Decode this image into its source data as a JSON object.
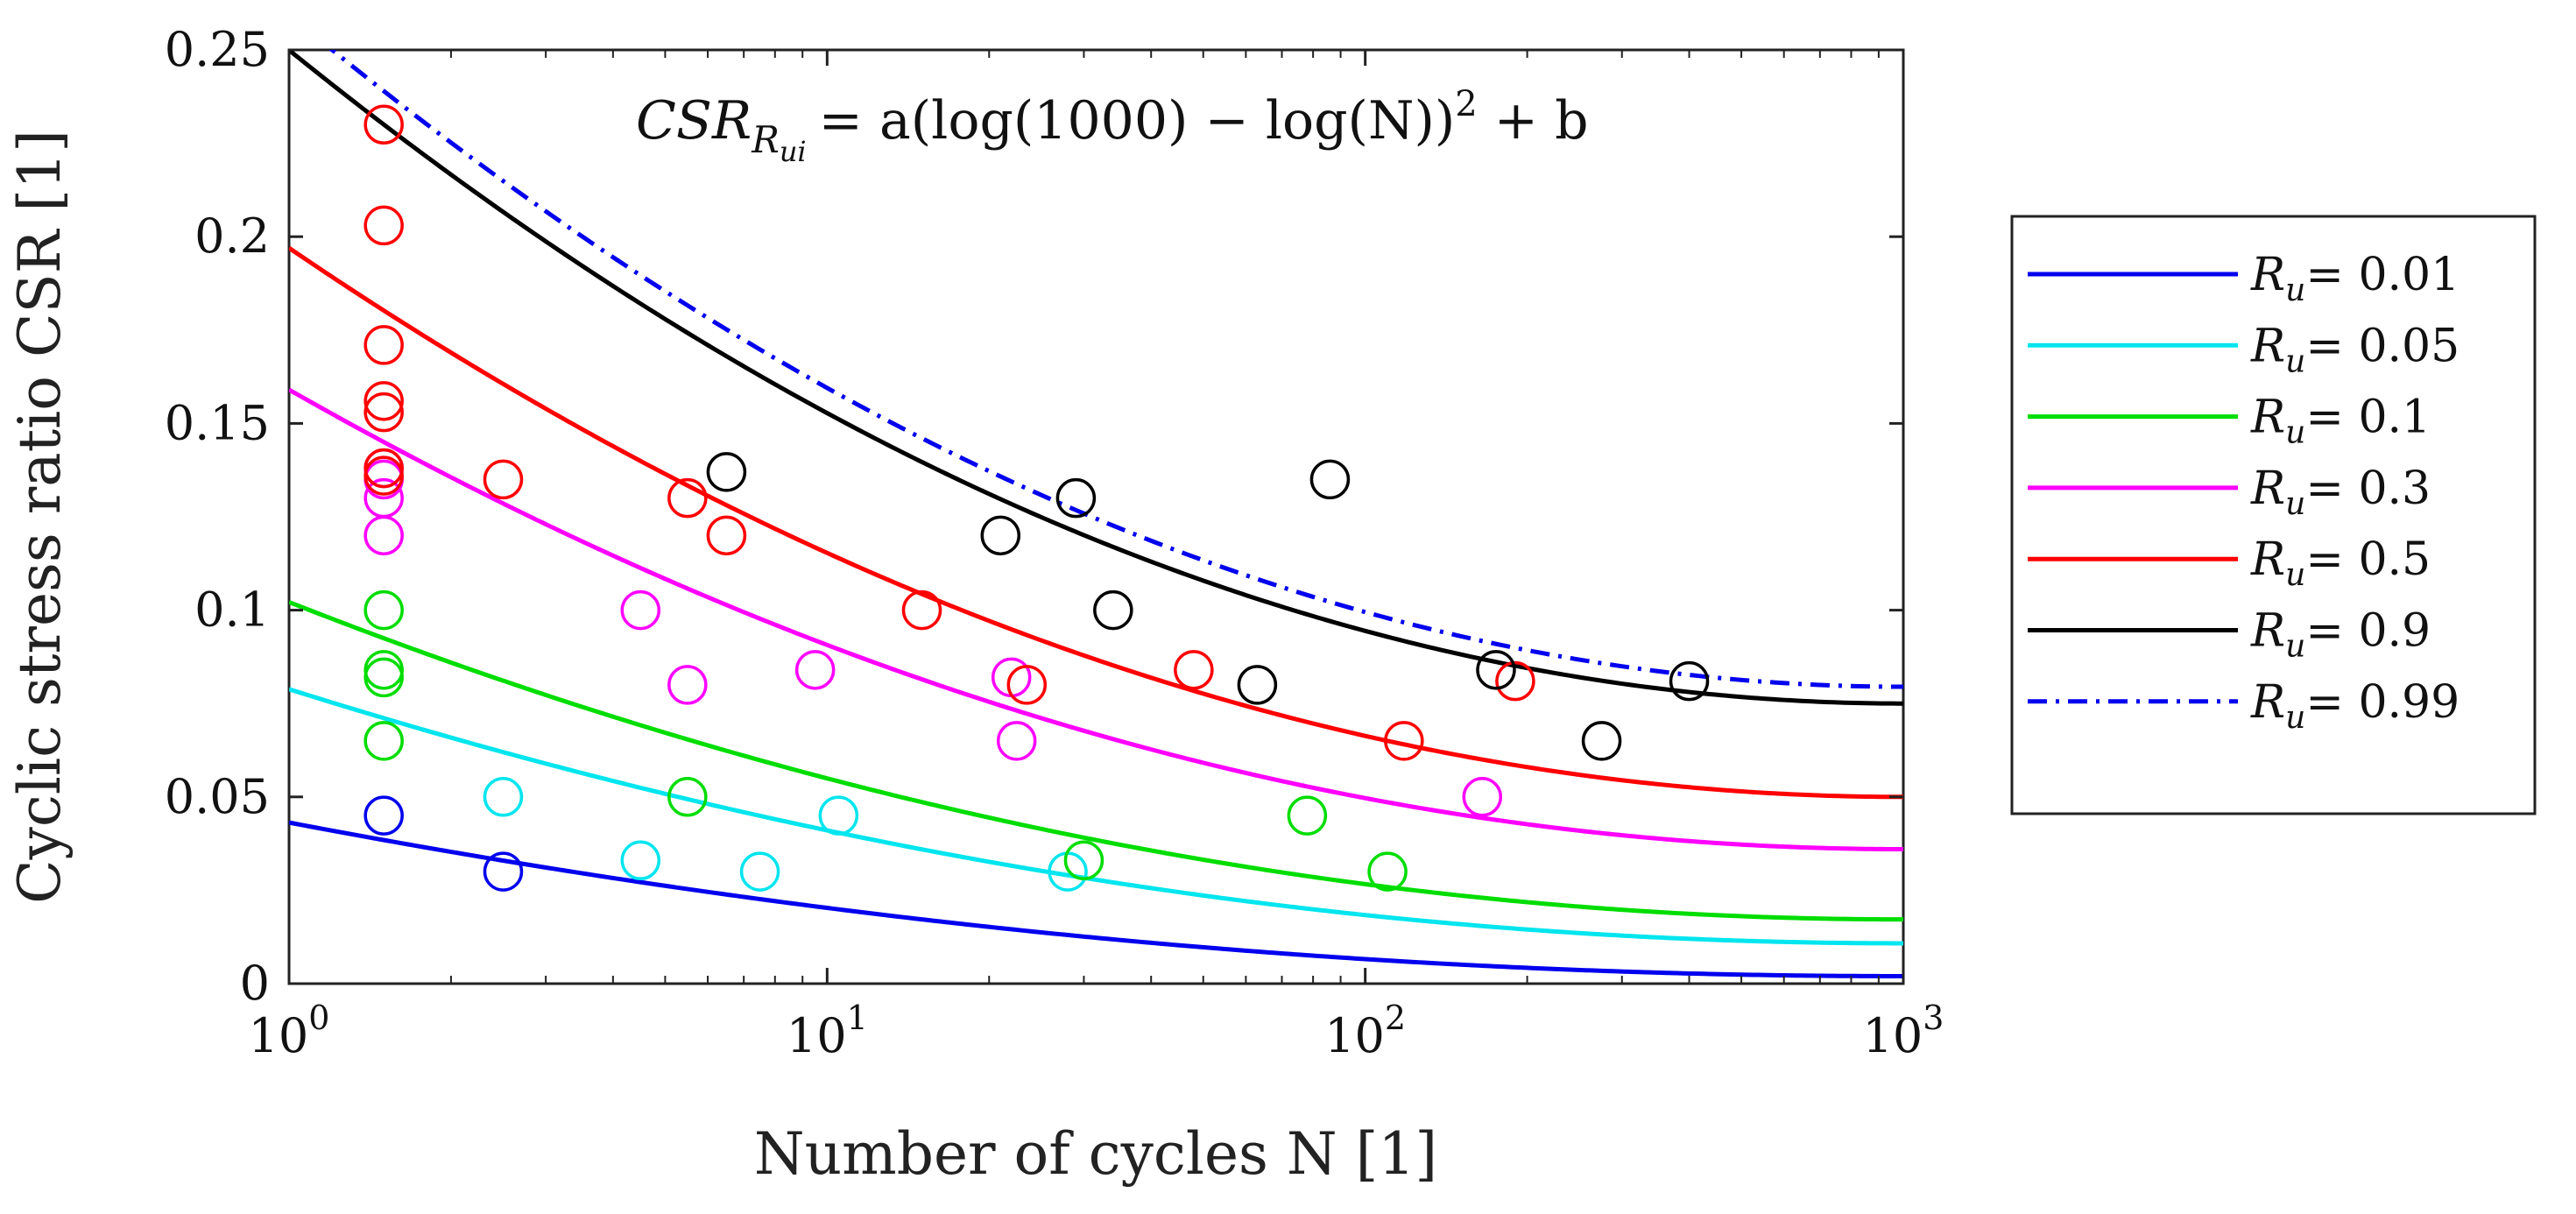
{
  "chart_data": {
    "type": "line",
    "title": "",
    "equation": {
      "lhs_main": "CSR",
      "lhs_sub": "R",
      "lhs_subsub": "ui",
      "rhs": "= a(log(1000) − log(N))",
      "power": "2",
      "tail": " + b"
    },
    "xlabel": "Number of cycles N [1]",
    "ylabel": "Cyclic stress ratio CSR [1]",
    "xscale": "log",
    "xlim": [
      1,
      1000
    ],
    "ylim": [
      0,
      0.25
    ],
    "xticks": [
      {
        "value": 1,
        "base": "10",
        "exp": "0"
      },
      {
        "value": 10,
        "base": "10",
        "exp": "1"
      },
      {
        "value": 100,
        "base": "10",
        "exp": "2"
      },
      {
        "value": 1000,
        "base": "10",
        "exp": "3"
      }
    ],
    "yticks": [
      {
        "value": 0,
        "label": "0"
      },
      {
        "value": 0.05,
        "label": "0.05"
      },
      {
        "value": 0.1,
        "label": "0.1"
      },
      {
        "value": 0.15,
        "label": "0.15"
      },
      {
        "value": 0.2,
        "label": "0.2"
      },
      {
        "value": 0.25,
        "label": "0.25"
      }
    ],
    "legend_position": "outside-right",
    "series": [
      {
        "name": "Ru= 0.01",
        "label_sym": "R",
        "label_sub": "u",
        "label_val": "= 0.01",
        "color": "#0000ee",
        "dash": "solid",
        "a": 0.00457,
        "b": 0.002,
        "points": [
          [
            1.5,
            0.045
          ],
          [
            2.5,
            0.03
          ]
        ]
      },
      {
        "name": "Ru= 0.05",
        "label_sym": "R",
        "label_sub": "u",
        "label_val": "= 0.05",
        "color": "#00e5ee",
        "dash": "solid",
        "a": 0.00756,
        "b": 0.0108,
        "points": [
          [
            2.5,
            0.05
          ],
          [
            4.5,
            0.033
          ],
          [
            7.5,
            0.03
          ],
          [
            10.5,
            0.045
          ],
          [
            28,
            0.03
          ]
        ]
      },
      {
        "name": "Ru= 0.1",
        "label_sym": "R",
        "label_sub": "u",
        "label_val": "= 0.1",
        "color": "#00dd00",
        "dash": "solid",
        "a": 0.00944,
        "b": 0.0172,
        "points": [
          [
            1.5,
            0.1
          ],
          [
            1.5,
            0.084
          ],
          [
            1.5,
            0.082
          ],
          [
            1.5,
            0.065
          ],
          [
            5.5,
            0.05
          ],
          [
            30,
            0.033
          ],
          [
            78,
            0.045
          ],
          [
            110,
            0.03
          ]
        ]
      },
      {
        "name": "Ru= 0.3",
        "label_sym": "R",
        "label_sub": "u",
        "label_val": "= 0.3",
        "color": "#ff00ff",
        "dash": "solid",
        "a": 0.01367,
        "b": 0.036,
        "points": [
          [
            1.5,
            0.138
          ],
          [
            1.5,
            0.135
          ],
          [
            1.5,
            0.13
          ],
          [
            1.5,
            0.12
          ],
          [
            4.5,
            0.1
          ],
          [
            5.5,
            0.08
          ],
          [
            9.5,
            0.084
          ],
          [
            22,
            0.082
          ],
          [
            22.5,
            0.065
          ],
          [
            165,
            0.05
          ]
        ]
      },
      {
        "name": "Ru= 0.5",
        "label_sym": "R",
        "label_sub": "u",
        "label_val": "= 0.5",
        "color": "#ff0000",
        "dash": "solid",
        "a": 0.01633,
        "b": 0.05,
        "points": [
          [
            1.5,
            0.23
          ],
          [
            1.5,
            0.203
          ],
          [
            1.5,
            0.171
          ],
          [
            1.5,
            0.156
          ],
          [
            1.5,
            0.153
          ],
          [
            1.5,
            0.138
          ],
          [
            1.5,
            0.136
          ],
          [
            2.5,
            0.135
          ],
          [
            5.5,
            0.13
          ],
          [
            6.5,
            0.12
          ],
          [
            15,
            0.1
          ],
          [
            23.5,
            0.08
          ],
          [
            48,
            0.084
          ],
          [
            118,
            0.065
          ],
          [
            190,
            0.081
          ]
        ]
      },
      {
        "name": "Ru= 0.9",
        "label_sym": "R",
        "label_sub": "u",
        "label_val": "= 0.9",
        "color": "#000000",
        "dash": "solid",
        "a": 0.01944,
        "b": 0.075,
        "points": [
          [
            6.5,
            0.137
          ],
          [
            21,
            0.12
          ],
          [
            29,
            0.13
          ],
          [
            34,
            0.1
          ],
          [
            63,
            0.08
          ],
          [
            86,
            0.135
          ],
          [
            175,
            0.084
          ],
          [
            275,
            0.065
          ],
          [
            400,
            0.081
          ]
        ]
      },
      {
        "name": "Ru= 0.99",
        "label_sym": "R",
        "label_sub": "u",
        "label_val": "= 0.99",
        "color": "#0000ee",
        "dash": "dashdot",
        "a": 0.02,
        "b": 0.0795,
        "points": []
      }
    ]
  }
}
